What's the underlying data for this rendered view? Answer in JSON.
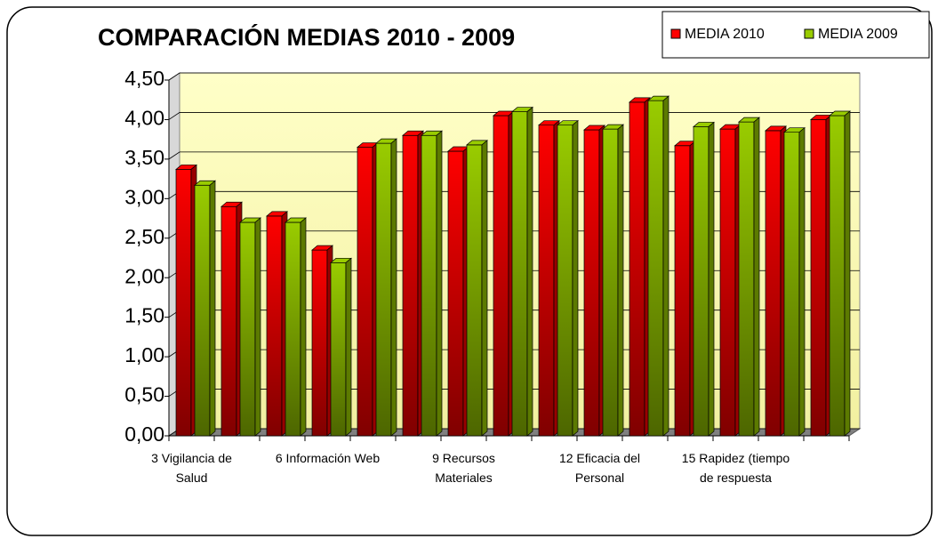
{
  "chart_data": {
    "type": "bar3d",
    "title": "COMPARACIÓN MEDIAS 2010 - 2009",
    "categories": [
      "3 Vigilancia de Salud",
      null,
      null,
      "6 Información Web",
      null,
      null,
      "9 Recursos Materiales",
      null,
      null,
      "12 Eficacia del Personal",
      null,
      null,
      "15 Rapidez (tiempo de respuesta",
      null,
      null
    ],
    "series": [
      {
        "name": "MEDIA 2010",
        "color": "#ff0000",
        "values": [
          3.37,
          2.9,
          2.78,
          2.35,
          3.65,
          3.8,
          3.6,
          4.05,
          3.93,
          3.87,
          4.22,
          3.67,
          3.88,
          3.86,
          4.0
        ]
      },
      {
        "name": "MEDIA 2009",
        "color": "#99cc00",
        "values": [
          3.17,
          2.7,
          2.7,
          2.19,
          3.7,
          3.8,
          3.68,
          4.1,
          3.93,
          3.88,
          4.24,
          3.91,
          3.97,
          3.84,
          4.05
        ]
      }
    ],
    "ylim": [
      0,
      4.5
    ],
    "yticks": [
      {
        "value": 0,
        "label": "0,00"
      },
      {
        "value": 0.5,
        "label": "0,50"
      },
      {
        "value": 1,
        "label": "1,00"
      },
      {
        "value": 1.5,
        "label": "1,50"
      },
      {
        "value": 2,
        "label": "2,00"
      },
      {
        "value": 2.5,
        "label": "2,50"
      },
      {
        "value": 3,
        "label": "3,00"
      },
      {
        "value": 3.5,
        "label": "3,50"
      },
      {
        "value": 4,
        "label": "4,00"
      },
      {
        "value": 4.5,
        "label": "4,50"
      }
    ],
    "grid": true,
    "legend": "top-right"
  }
}
